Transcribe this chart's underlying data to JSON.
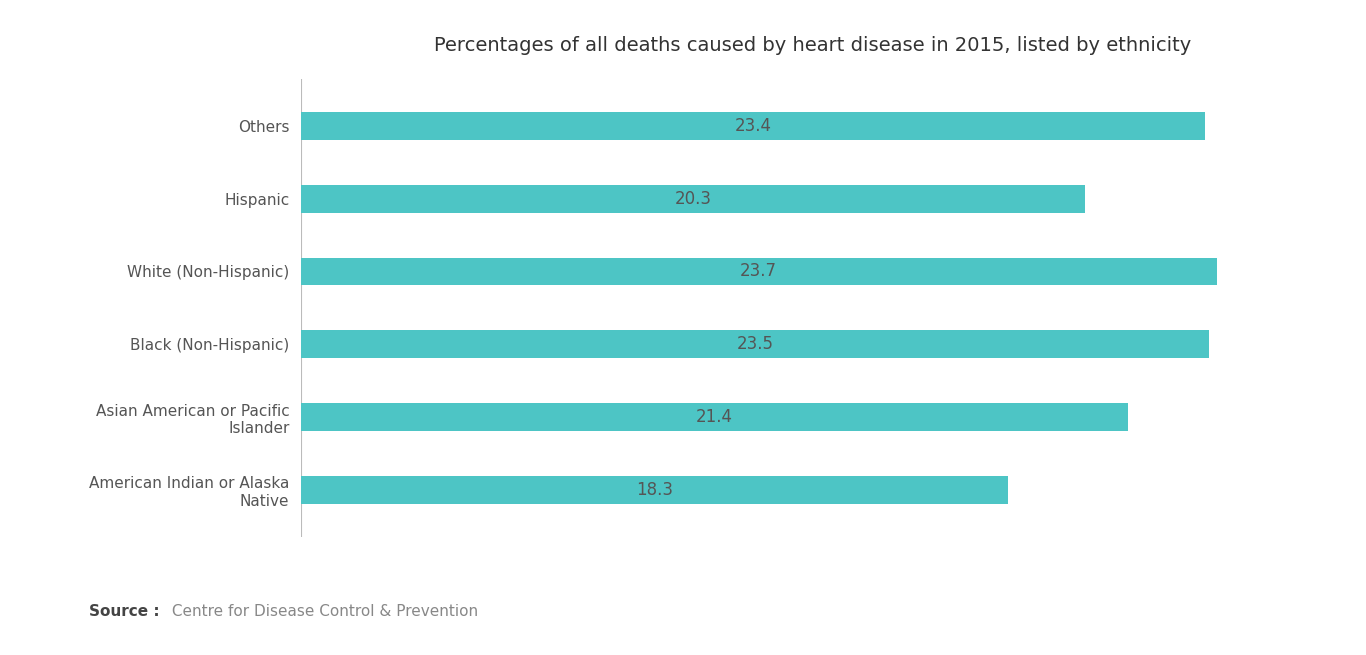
{
  "title": "Percentages of all deaths caused by heart disease in 2015, listed by ethnicity",
  "categories": [
    "American Indian or Alaska\nNative",
    "Asian American or Pacific\nIslander",
    "Black (Non-Hispanic)",
    "White (Non-Hispanic)",
    "Hispanic",
    "Others"
  ],
  "values": [
    18.3,
    21.4,
    23.5,
    23.7,
    20.3,
    23.4
  ],
  "bar_color": "#4DC5C5",
  "label_color": "#555555",
  "title_color": "#333333",
  "background_color": "#FFFFFF",
  "source_bold": "Source :",
  "source_text": " Centre for Disease Control & Prevention",
  "xlim": [
    0,
    26.5
  ],
  "bar_height": 0.38,
  "value_fontsize": 12,
  "label_fontsize": 11,
  "title_fontsize": 14,
  "spine_color": "#AAAAAA"
}
